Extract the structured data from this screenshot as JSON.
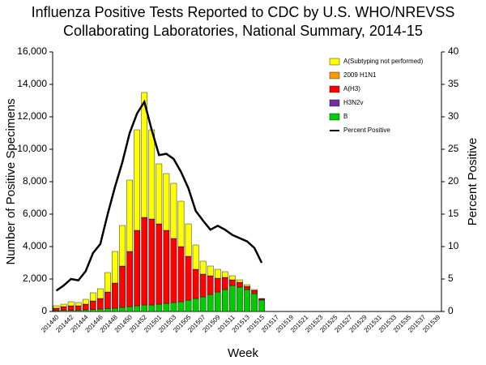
{
  "chart_data": {
    "type": "bar",
    "title": "Influenza Positive Tests Reported to CDC by U.S. WHO/NREVSS",
    "subtitle": "Collaborating Laboratories, National Summary, 2014-15",
    "x_label": "Week",
    "y_label": "Number of Positive Specimens",
    "y2_label": "Percent Positive",
    "categories": [
      "201440",
      null,
      "201442",
      null,
      "201444",
      null,
      "201446",
      null,
      "201448",
      null,
      "201450",
      null,
      "201452",
      null,
      "201501",
      null,
      "201503",
      null,
      "201505",
      null,
      "201507",
      null,
      "201509",
      null,
      "201511",
      null,
      "201513",
      null,
      "201515",
      null,
      "201517",
      null,
      "201519",
      null,
      "201521",
      null,
      "201523",
      null,
      "201525",
      null,
      "201527",
      null,
      "201529",
      null,
      "201531",
      null,
      "201533",
      null,
      "201535",
      null,
      "201537",
      null,
      "201539"
    ],
    "series": [
      {
        "name": "A(Subtyping not performed)",
        "color": "#ffff00",
        "values": [
          150,
          150,
          250,
          200,
          300,
          500,
          600,
          1200,
          1950,
          2500,
          4400,
          6200,
          7700,
          5500,
          3700,
          3500,
          3400,
          2800,
          2000,
          1500,
          800,
          600,
          550,
          350,
          250,
          150,
          100,
          50,
          20,
          null,
          null,
          null,
          null,
          null,
          null,
          null,
          null,
          null,
          null,
          null,
          null,
          null,
          null,
          null,
          null,
          null,
          null,
          null,
          null,
          null,
          null,
          null,
          null
        ]
      },
      {
        "name": "2009 H1N1",
        "color": "#ff9900",
        "values": [
          10,
          10,
          10,
          10,
          10,
          10,
          10,
          10,
          10,
          10,
          10,
          10,
          10,
          10,
          10,
          10,
          10,
          10,
          10,
          10,
          10,
          10,
          10,
          10,
          10,
          10,
          10,
          10,
          5,
          null,
          null,
          null,
          null,
          null,
          null,
          null,
          null,
          null,
          null,
          null,
          null,
          null,
          null,
          null,
          null,
          null,
          null,
          null,
          null,
          null,
          null,
          null,
          null
        ]
      },
      {
        "name": "A(H3)",
        "color": "#ff0000",
        "values": [
          140,
          230,
          270,
          260,
          340,
          520,
          640,
          1010,
          1540,
          2540,
          3390,
          4640,
          5390,
          5290,
          4940,
          4490,
          3940,
          3390,
          2690,
          1790,
          1390,
          1140,
          840,
          740,
          340,
          290,
          190,
          190,
          75,
          null,
          null,
          null,
          null,
          null,
          null,
          null,
          null,
          null,
          null,
          null,
          null,
          null,
          null,
          null,
          null,
          null,
          null,
          null,
          null,
          null,
          null,
          null,
          null
        ]
      },
      {
        "name": "H3N2v",
        "color": "#7030a0",
        "values": [
          0,
          0,
          0,
          0,
          0,
          0,
          0,
          0,
          0,
          0,
          0,
          0,
          0,
          0,
          0,
          0,
          0,
          0,
          0,
          0,
          0,
          0,
          0,
          0,
          0,
          0,
          0,
          0,
          0,
          null,
          null,
          null,
          null,
          null,
          null,
          null,
          null,
          null,
          null,
          null,
          null,
          null,
          null,
          null,
          null,
          null,
          null,
          null,
          null,
          null,
          null,
          null,
          null
        ]
      },
      {
        "name": "B",
        "color": "#00cc00",
        "values": [
          50,
          60,
          70,
          80,
          100,
          120,
          150,
          180,
          200,
          250,
          300,
          350,
          400,
          400,
          450,
          500,
          550,
          600,
          700,
          800,
          900,
          1050,
          1200,
          1350,
          1600,
          1500,
          1350,
          1100,
          700,
          null,
          null,
          null,
          null,
          null,
          null,
          null,
          null,
          null,
          null,
          null,
          null,
          null,
          null,
          null,
          null,
          null,
          null,
          null,
          null,
          null,
          null,
          null,
          null
        ]
      },
      {
        "name": "Percent Positive",
        "type": "line",
        "axis": "y2",
        "color": "#000000",
        "values": [
          3.2,
          4,
          5,
          4.8,
          6.2,
          9,
          10.4,
          15,
          19.2,
          23,
          27.5,
          30.5,
          32.3,
          28,
          24.1,
          24.3,
          23.5,
          21.5,
          19,
          15.5,
          14,
          12.6,
          13.2,
          12.6,
          11.8,
          11.3,
          10.8,
          9.8,
          7.5,
          null,
          null,
          null,
          null,
          null,
          null,
          null,
          null,
          null,
          null,
          null,
          null,
          null,
          null,
          null,
          null,
          null,
          null,
          null,
          null,
          null,
          null,
          null,
          null
        ]
      }
    ],
    "ylim": [
      0,
      16000
    ],
    "yticks": [
      0,
      {
        "value": 2000,
        "label": "2,000"
      },
      {
        "value": 4000,
        "label": "4,000"
      },
      {
        "value": 6000,
        "label": "6,000"
      },
      {
        "value": 8000,
        "label": "8,000"
      },
      {
        "value": 10000,
        "label": "10,000"
      },
      {
        "value": 12000,
        "label": "12,000"
      },
      {
        "value": 14000,
        "label": "14,000"
      },
      {
        "value": 16000,
        "label": "16,000"
      }
    ],
    "y2lim": [
      0,
      40
    ],
    "y2ticks": [
      0,
      5,
      10,
      15,
      20,
      25,
      30,
      35,
      40
    ],
    "grid": false,
    "legend": "top-right"
  }
}
